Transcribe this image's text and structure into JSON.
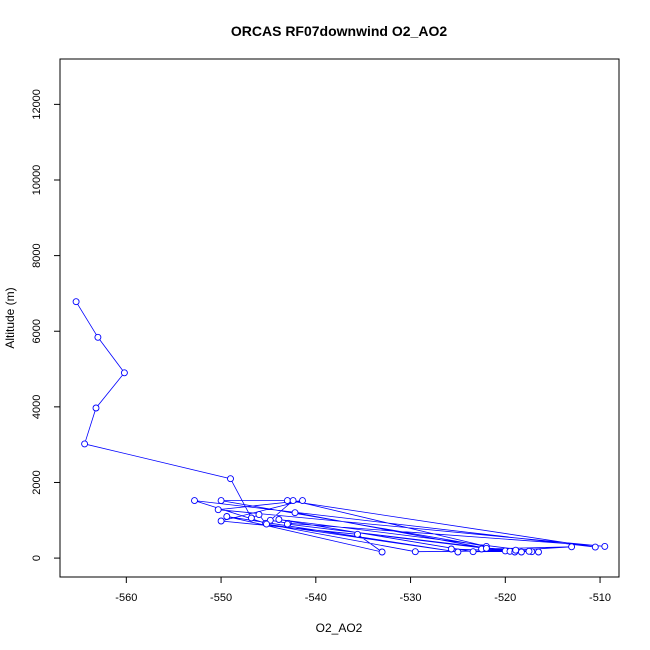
{
  "chart_data": {
    "type": "line",
    "title": "ORCAS RF07downwind O2_AO2",
    "xlabel": "O2_AO2",
    "ylabel": "Altitude (m)",
    "xlim": [
      -567,
      -508
    ],
    "ylim": [
      -500,
      13200
    ],
    "xticks": [
      -560,
      -550,
      -540,
      -530,
      -520,
      -510
    ],
    "yticks": [
      0,
      2000,
      4000,
      6000,
      8000,
      10000,
      12000
    ],
    "xtick_labels": [
      "-560",
      "-550",
      "-540",
      "-530",
      "-520",
      "-510"
    ],
    "ytick_labels": [
      "0",
      "2000",
      "4000",
      "6000",
      "8000",
      "10000",
      "12000"
    ],
    "grid": false,
    "series_color": "#0000ff",
    "markers": "open-circle",
    "series": [
      {
        "x": [
          -565.3,
          -563.0,
          -560.2,
          -563.2,
          -564.4,
          -549.0,
          -546.8,
          -546.0,
          -545.3,
          -552.8,
          -510.5,
          -543.0,
          -550.0,
          -522.0,
          -542.4,
          -544.8,
          -542.9,
          -509.5,
          -550.3,
          -541.4,
          -550.0,
          -535.6,
          -533.0,
          -549.4,
          -525.0,
          -545.2,
          -529.5,
          -520.0,
          -518.3,
          -543.0,
          -519.5,
          -517.2,
          -525.7,
          -516.5,
          -543.9,
          -523.4,
          -517.5,
          -519.0,
          -522.5,
          -513.0,
          -518.9,
          -522.0,
          -542.2
        ],
        "y": [
          6780,
          5840,
          4900,
          3970,
          3020,
          2100,
          1060,
          1150,
          920,
          1520,
          290,
          1520,
          1520,
          310,
          1520,
          1000,
          920,
          310,
          1280,
          1520,
          980,
          630,
          160,
          1100,
          160,
          900,
          170,
          190,
          160,
          900,
          180,
          170,
          240,
          160,
          1020,
          170,
          180,
          160,
          240,
          300,
          210,
          260,
          1200
        ]
      }
    ]
  }
}
